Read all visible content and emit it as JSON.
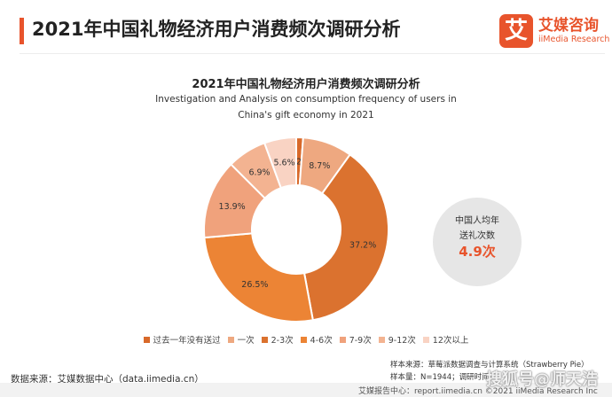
{
  "header": {
    "title": "2021年中国礼物经济用户消费频次调研分析"
  },
  "logo": {
    "mark": "艾",
    "cn": "艾媒咨询",
    "en": "iiMedia Research"
  },
  "stat": {
    "line1": "中国人均年",
    "line2": "送礼次数",
    "value": "4.9次"
  },
  "source": {
    "left": "数据来源：艾媒数据中心（data.iimedia.cn）"
  },
  "notes": {
    "line1": "样本来源：草莓派数据调查与计算系统（Strawberry Pie）",
    "line2": "样本量：N=1944；调研时间："
  },
  "footer": {
    "text": "艾媒报告中心：report.iimedia.cn   ©2021  iiMedia Research  Inc"
  },
  "watermark": "搜狐号@师天浩",
  "colors": {
    "accent": "#e8542c"
  },
  "chart_data": {
    "type": "pie",
    "donut": true,
    "title": "2021年中国礼物经济用户消费频次调研分析",
    "subtitle_lines": [
      "Investigation and Analysis on consumption frequency of users in",
      "China's gift economy in 2021"
    ],
    "legend_position": "bottom",
    "slices": [
      {
        "label": "过去一年没有送过",
        "value": 1.2,
        "display": "1.2%",
        "color": "#d8692a"
      },
      {
        "label": "一次",
        "value": 8.7,
        "display": "8.7%",
        "color": "#eea880"
      },
      {
        "label": "2-3次",
        "value": 37.2,
        "display": "37.2%",
        "color": "#db722f"
      },
      {
        "label": "4-6次",
        "value": 26.5,
        "display": "26.5%",
        "color": "#ec8435"
      },
      {
        "label": "7-9次",
        "value": 13.9,
        "display": "13.9%",
        "color": "#f0a27c"
      },
      {
        "label": "9-12次",
        "value": 6.9,
        "display": "6.9%",
        "color": "#f3b391"
      },
      {
        "label": "12次以上",
        "value": 5.6,
        "display": "5.6%",
        "color": "#f9d3c3"
      }
    ]
  }
}
